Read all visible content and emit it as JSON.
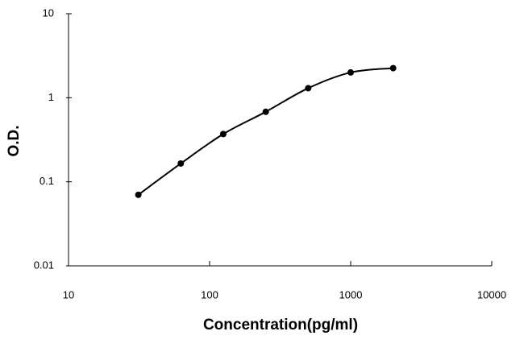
{
  "chart_data": {
    "type": "scatter",
    "xlabel": "Concentration(pg/ml)",
    "ylabel": "O.D.",
    "x": [
      31.25,
      62.5,
      125,
      250,
      500,
      1000,
      2000
    ],
    "values": [
      0.07,
      0.165,
      0.37,
      0.68,
      1.3,
      2.0,
      2.25
    ],
    "color": "#000000",
    "connect": "smooth",
    "xscale": "log",
    "yscale": "log",
    "xlim": [
      10,
      10000
    ],
    "ylim": [
      0.01,
      10
    ],
    "xticks": [
      10,
      100,
      1000,
      10000
    ],
    "yticks": [
      0.01,
      0.1,
      1,
      10
    ]
  }
}
